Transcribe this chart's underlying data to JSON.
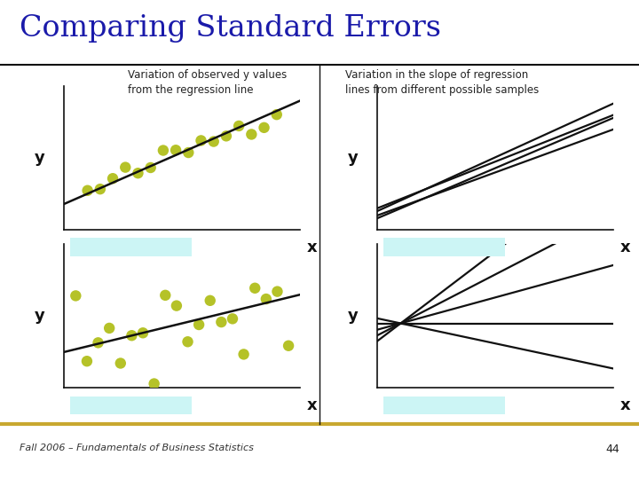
{
  "title": "Comparing Standard Errors",
  "title_color": "#1a1aaa",
  "title_fontsize": 24,
  "background_color": "#ffffff",
  "dot_color": "#b5c228",
  "dot_size": 80,
  "line_color": "#111111",
  "axis_color": "#111111",
  "label_color": "#111111",
  "cyan_bg": "#ccf5f5",
  "top_left_desc": "Variation of observed y values\nfrom the regression line",
  "top_right_desc": "Variation in the slope of regression\nlines from different possible samples",
  "footer": "Fall 2006 – Fundamentals of Business Statistics",
  "footer_fontsize": 8,
  "page_num": "44",
  "divider_color": "#c8a830",
  "top_divider_color": "#111111"
}
